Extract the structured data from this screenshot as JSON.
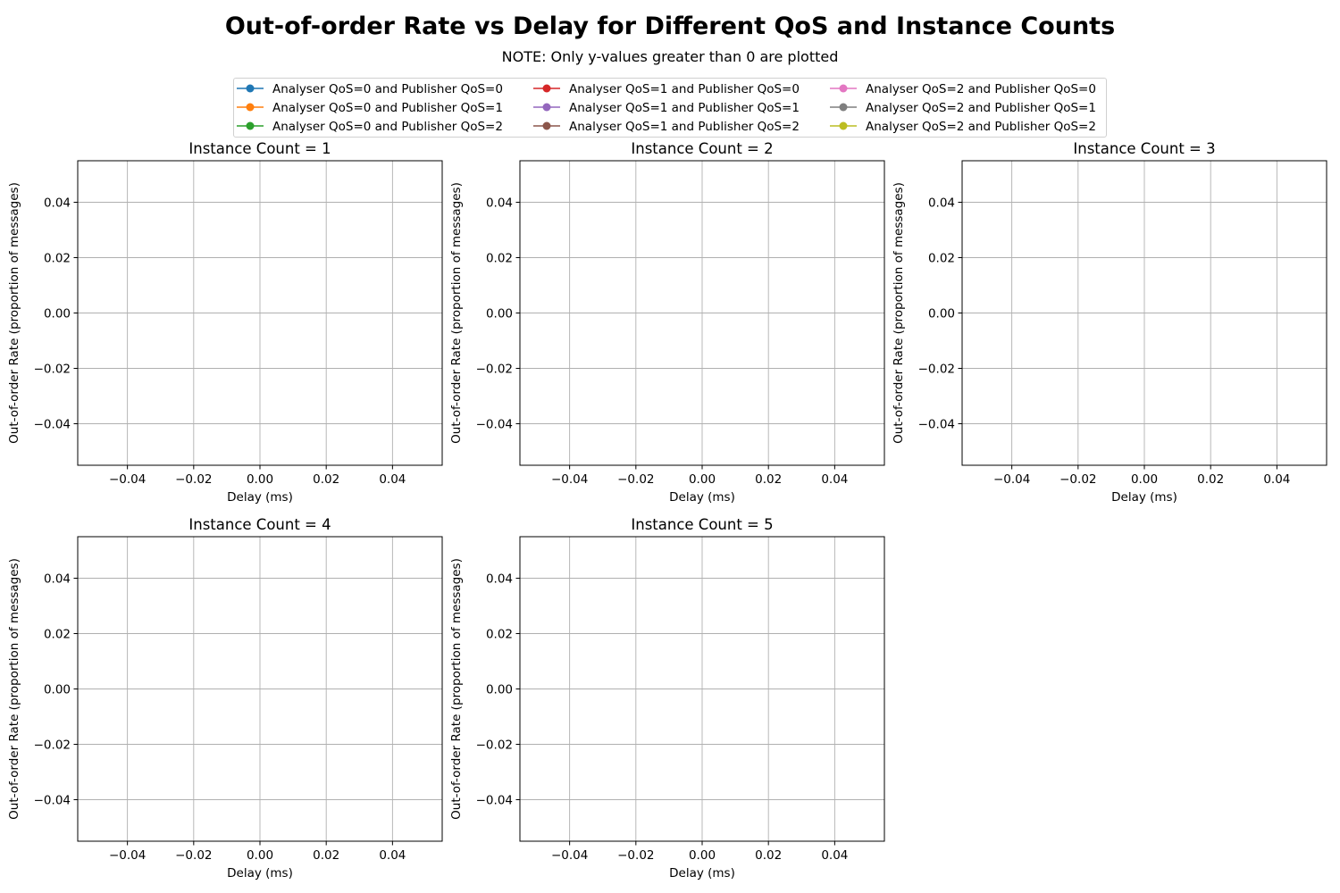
{
  "figure": {
    "title": "Out-of-order Rate vs Delay for Different QoS and Instance Counts",
    "subtitle": "NOTE: Only y-values greater than 0 are plotted"
  },
  "legend": {
    "entries": [
      {
        "label": "Analyser QoS=0 and Publisher QoS=0",
        "color": "#1f77b4"
      },
      {
        "label": "Analyser QoS=0 and Publisher QoS=1",
        "color": "#ff7f0e"
      },
      {
        "label": "Analyser QoS=0 and Publisher QoS=2",
        "color": "#2ca02c"
      },
      {
        "label": "Analyser QoS=1 and Publisher QoS=0",
        "color": "#d62728"
      },
      {
        "label": "Analyser QoS=1 and Publisher QoS=1",
        "color": "#9467bd"
      },
      {
        "label": "Analyser QoS=1 and Publisher QoS=2",
        "color": "#8c564b"
      },
      {
        "label": "Analyser QoS=2 and Publisher QoS=0",
        "color": "#e377c2"
      },
      {
        "label": "Analyser QoS=2 and Publisher QoS=1",
        "color": "#7f7f7f"
      },
      {
        "label": "Analyser QoS=2 and Publisher QoS=2",
        "color": "#bcbd22"
      }
    ]
  },
  "chart_data": [
    {
      "type": "line",
      "title": "Instance Count = 1",
      "xlabel": "Delay (ms)",
      "ylabel": "Out-of-order Rate (proportion of messages)",
      "xlim": [
        -0.055,
        0.055
      ],
      "ylim": [
        -0.055,
        0.055
      ],
      "xticks": [
        -0.04,
        -0.02,
        0.0,
        0.02,
        0.04
      ],
      "yticks": [
        -0.04,
        -0.02,
        0.0,
        0.02,
        0.04
      ],
      "xtick_labels": [
        "−0.04",
        "−0.02",
        "0.00",
        "0.02",
        "0.04"
      ],
      "ytick_labels": [
        "−0.04",
        "−0.02",
        "0.00",
        "0.02",
        "0.04"
      ],
      "grid": true,
      "series": []
    },
    {
      "type": "line",
      "title": "Instance Count = 2",
      "xlabel": "Delay (ms)",
      "ylabel": "Out-of-order Rate (proportion of messages)",
      "xlim": [
        -0.055,
        0.055
      ],
      "ylim": [
        -0.055,
        0.055
      ],
      "xticks": [
        -0.04,
        -0.02,
        0.0,
        0.02,
        0.04
      ],
      "yticks": [
        -0.04,
        -0.02,
        0.0,
        0.02,
        0.04
      ],
      "xtick_labels": [
        "−0.04",
        "−0.02",
        "0.00",
        "0.02",
        "0.04"
      ],
      "ytick_labels": [
        "−0.04",
        "−0.02",
        "0.00",
        "0.02",
        "0.04"
      ],
      "grid": true,
      "series": []
    },
    {
      "type": "line",
      "title": "Instance Count = 3",
      "xlabel": "Delay (ms)",
      "ylabel": "Out-of-order Rate (proportion of messages)",
      "xlim": [
        -0.055,
        0.055
      ],
      "ylim": [
        -0.055,
        0.055
      ],
      "xticks": [
        -0.04,
        -0.02,
        0.0,
        0.02,
        0.04
      ],
      "yticks": [
        -0.04,
        -0.02,
        0.0,
        0.02,
        0.04
      ],
      "xtick_labels": [
        "−0.04",
        "−0.02",
        "0.00",
        "0.02",
        "0.04"
      ],
      "ytick_labels": [
        "−0.04",
        "−0.02",
        "0.00",
        "0.02",
        "0.04"
      ],
      "grid": true,
      "series": []
    },
    {
      "type": "line",
      "title": "Instance Count = 4",
      "xlabel": "Delay (ms)",
      "ylabel": "Out-of-order Rate (proportion of messages)",
      "xlim": [
        -0.055,
        0.055
      ],
      "ylim": [
        -0.055,
        0.055
      ],
      "xticks": [
        -0.04,
        -0.02,
        0.0,
        0.02,
        0.04
      ],
      "yticks": [
        -0.04,
        -0.02,
        0.0,
        0.02,
        0.04
      ],
      "xtick_labels": [
        "−0.04",
        "−0.02",
        "0.00",
        "0.02",
        "0.04"
      ],
      "ytick_labels": [
        "−0.04",
        "−0.02",
        "0.00",
        "0.02",
        "0.04"
      ],
      "grid": true,
      "series": []
    },
    {
      "type": "line",
      "title": "Instance Count = 5",
      "xlabel": "Delay (ms)",
      "ylabel": "Out-of-order Rate (proportion of messages)",
      "xlim": [
        -0.055,
        0.055
      ],
      "ylim": [
        -0.055,
        0.055
      ],
      "xticks": [
        -0.04,
        -0.02,
        0.0,
        0.02,
        0.04
      ],
      "yticks": [
        -0.04,
        -0.02,
        0.0,
        0.02,
        0.04
      ],
      "xtick_labels": [
        "−0.04",
        "−0.02",
        "0.00",
        "0.02",
        "0.04"
      ],
      "ytick_labels": [
        "−0.04",
        "−0.02",
        "0.00",
        "0.02",
        "0.04"
      ],
      "grid": true,
      "series": []
    }
  ]
}
